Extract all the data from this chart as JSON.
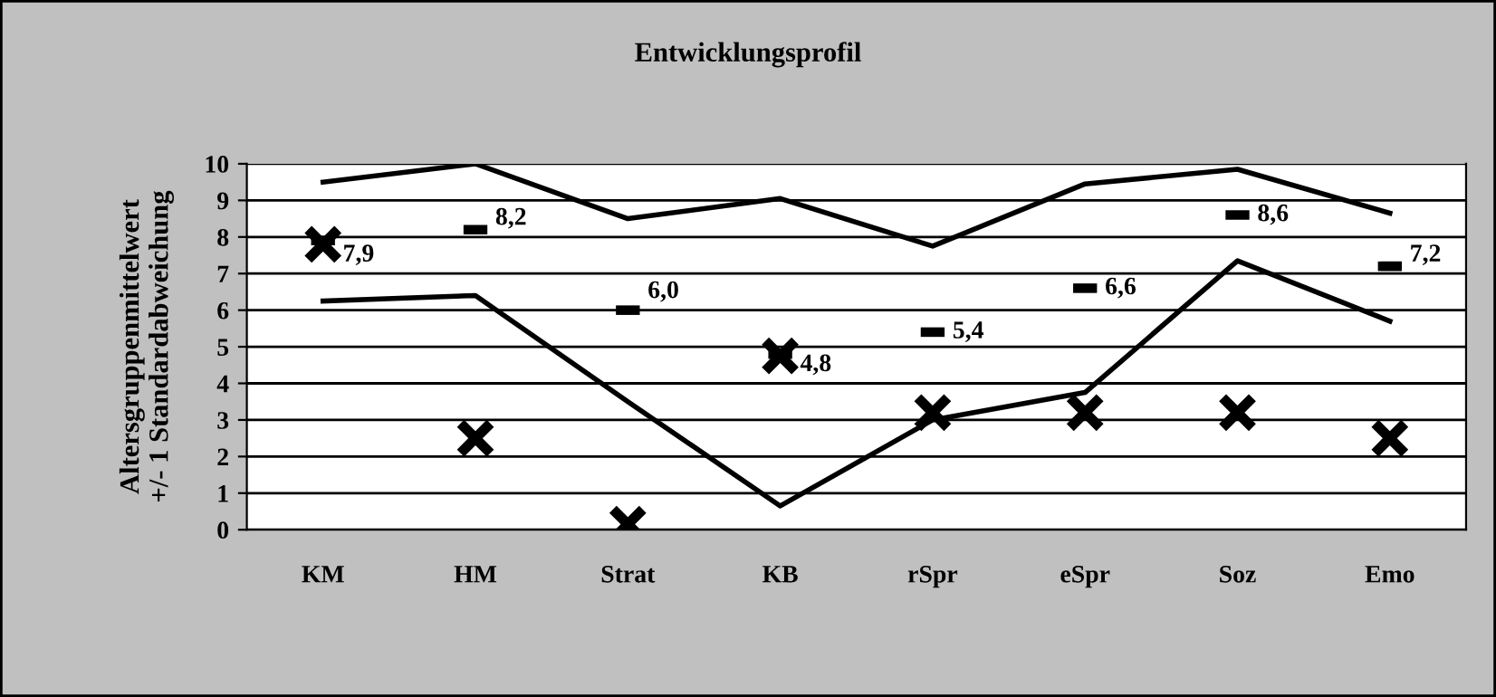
{
  "chart_data": {
    "type": "line",
    "title": "Entwicklungsprofil",
    "ylabel": "Altersgruppenmittelwert\n+/- 1 Standardabweichung",
    "categories": [
      "KM",
      "HM",
      "Strat",
      "KB",
      "rSpr",
      "eSpr",
      "Soz",
      "Emo"
    ],
    "series": [
      {
        "color": "#000000",
        "marker": "none",
        "values": [
          9.5,
          10.0,
          8.5,
          9.05,
          7.75,
          9.45,
          9.85,
          8.65
        ]
      },
      {
        "color": "#000000",
        "marker": "none",
        "values": [
          6.25,
          6.4,
          3.5,
          0.65,
          3.0,
          3.75,
          7.35,
          5.7
        ]
      },
      {
        "type": "scatter",
        "color": "#000000",
        "marker": "square",
        "values": [
          7.9,
          8.2,
          6.0,
          4.8,
          5.4,
          6.6,
          8.6,
          7.2
        ],
        "value_labels": [
          "7,9",
          "8,2",
          "6,0",
          "4,8",
          "5,4",
          "6,6",
          "8,6",
          "7,2"
        ]
      },
      {
        "type": "scatter",
        "color": "#000000",
        "marker": "cross",
        "values": [
          7.8,
          2.5,
          0.15,
          4.75,
          3.2,
          3.2,
          3.2,
          2.5
        ]
      }
    ],
    "ylim": [
      0,
      10
    ],
    "yticks": [
      0,
      1,
      2,
      3,
      4,
      5,
      6,
      7,
      8,
      9,
      10
    ],
    "grid": "y",
    "legend": false
  }
}
